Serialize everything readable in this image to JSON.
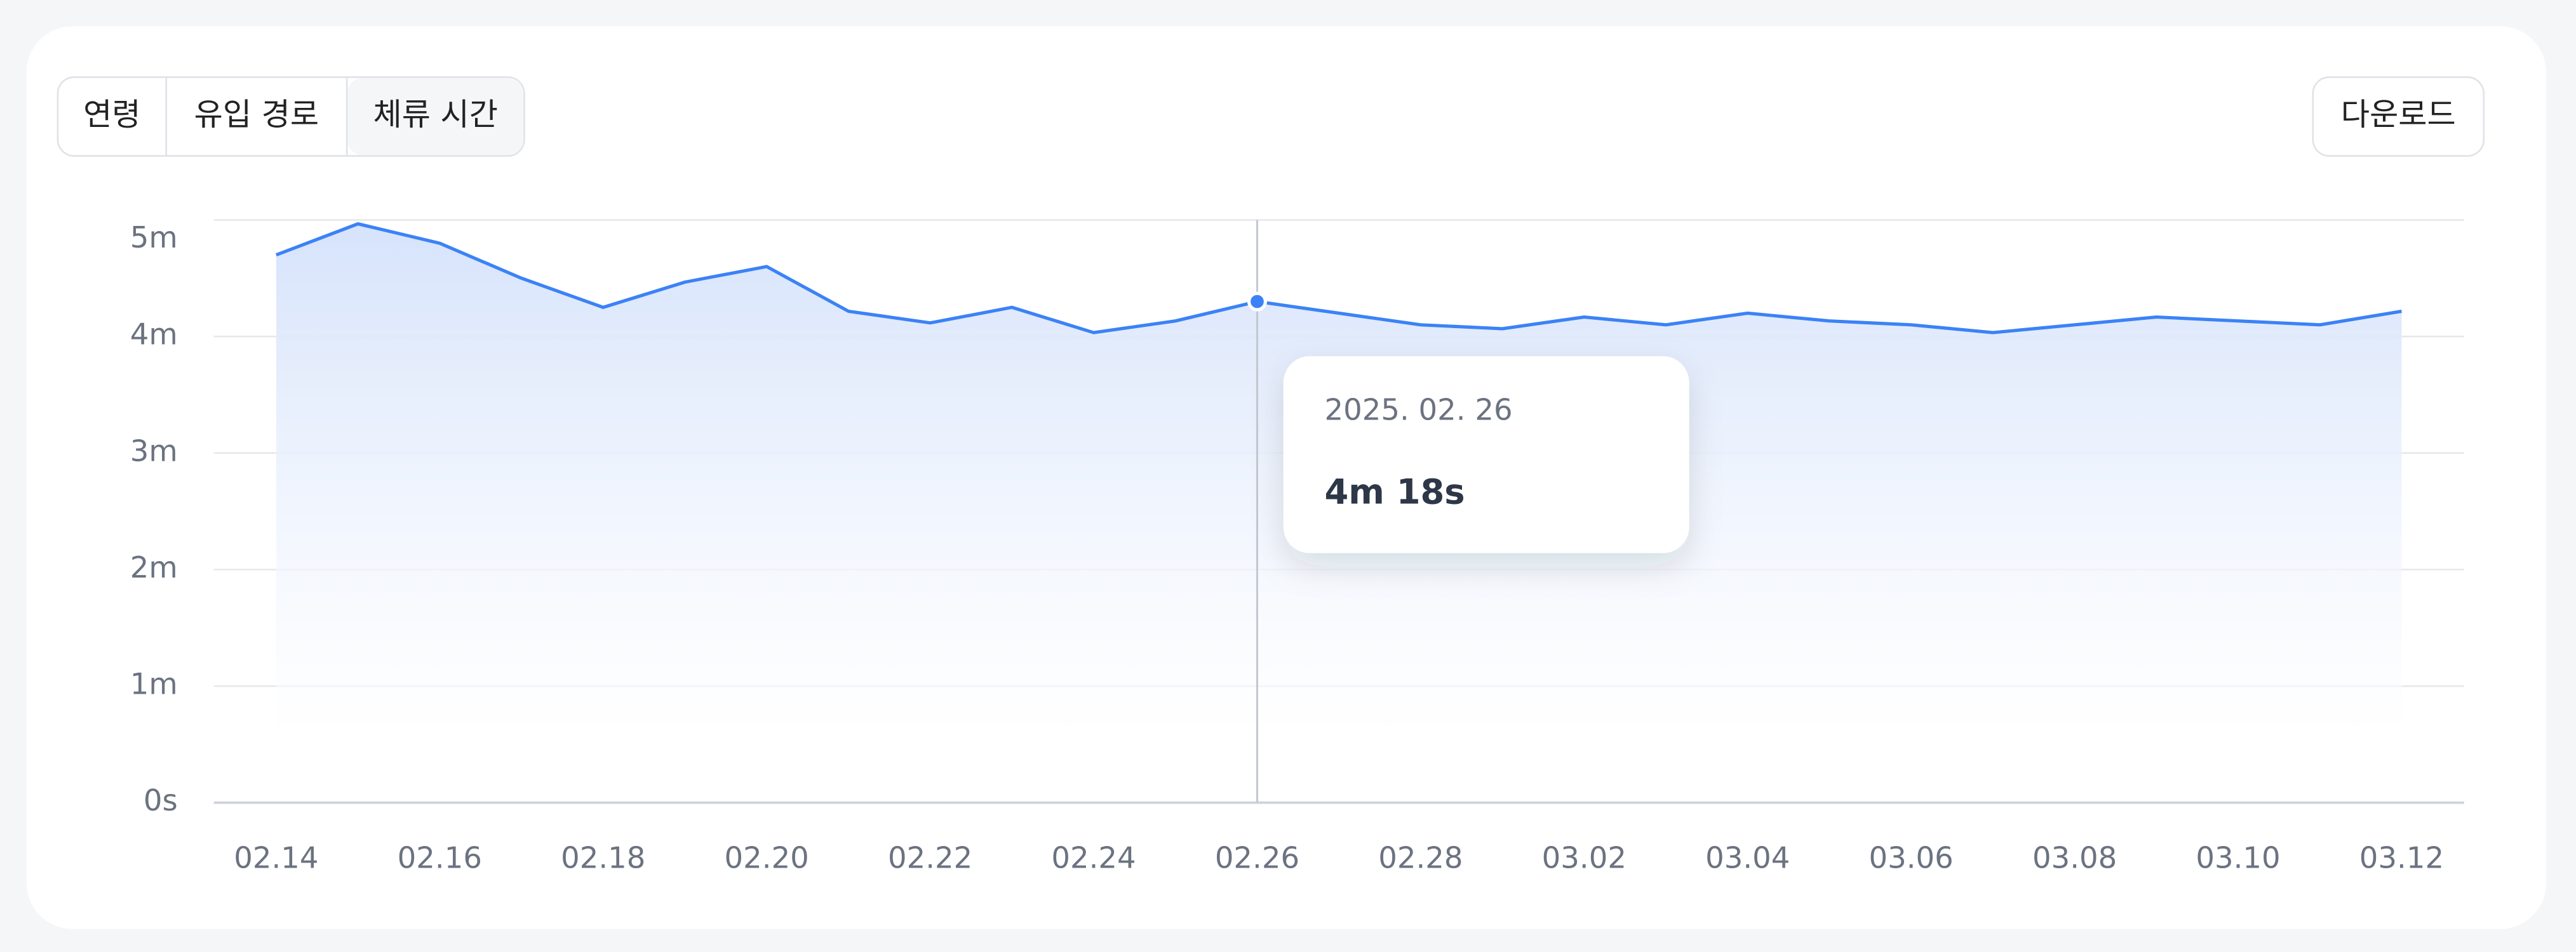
{
  "chart_data": {
    "type": "area",
    "tabs": [
      "연령",
      "유입 경로",
      "체류 시간"
    ],
    "active_tab": "체류 시간",
    "download": "다운로드",
    "categories": [
      "02.14",
      null,
      "02.16",
      null,
      "02.18",
      null,
      "02.20",
      null,
      "02.22",
      null,
      "02.24",
      null,
      "02.26",
      null,
      "02.28",
      null,
      "03.02",
      null,
      "03.04",
      null,
      "03.06",
      null,
      "03.08",
      null,
      "03.10",
      null,
      "03.12"
    ],
    "values": [
      282,
      298,
      288,
      270,
      255,
      268,
      276,
      253,
      247,
      255,
      242,
      248,
      258,
      252,
      246,
      244,
      250,
      246,
      252,
      248,
      246,
      242,
      246,
      250,
      248,
      246,
      253
    ],
    "color": "#3b82f6",
    "ylim": [
      0,
      300
    ],
    "yticks": [
      {
        "value": 0,
        "label": "0s"
      },
      {
        "value": 60,
        "label": "1m"
      },
      {
        "value": 120,
        "label": "2m"
      },
      {
        "value": 180,
        "label": "3m"
      },
      {
        "value": 240,
        "label": "4m"
      },
      {
        "value": 300,
        "label": "5m"
      }
    ],
    "grid": true,
    "tooltip": {
      "date": "2025. 02. 26",
      "value": 258,
      "label": "4m 18s"
    }
  }
}
